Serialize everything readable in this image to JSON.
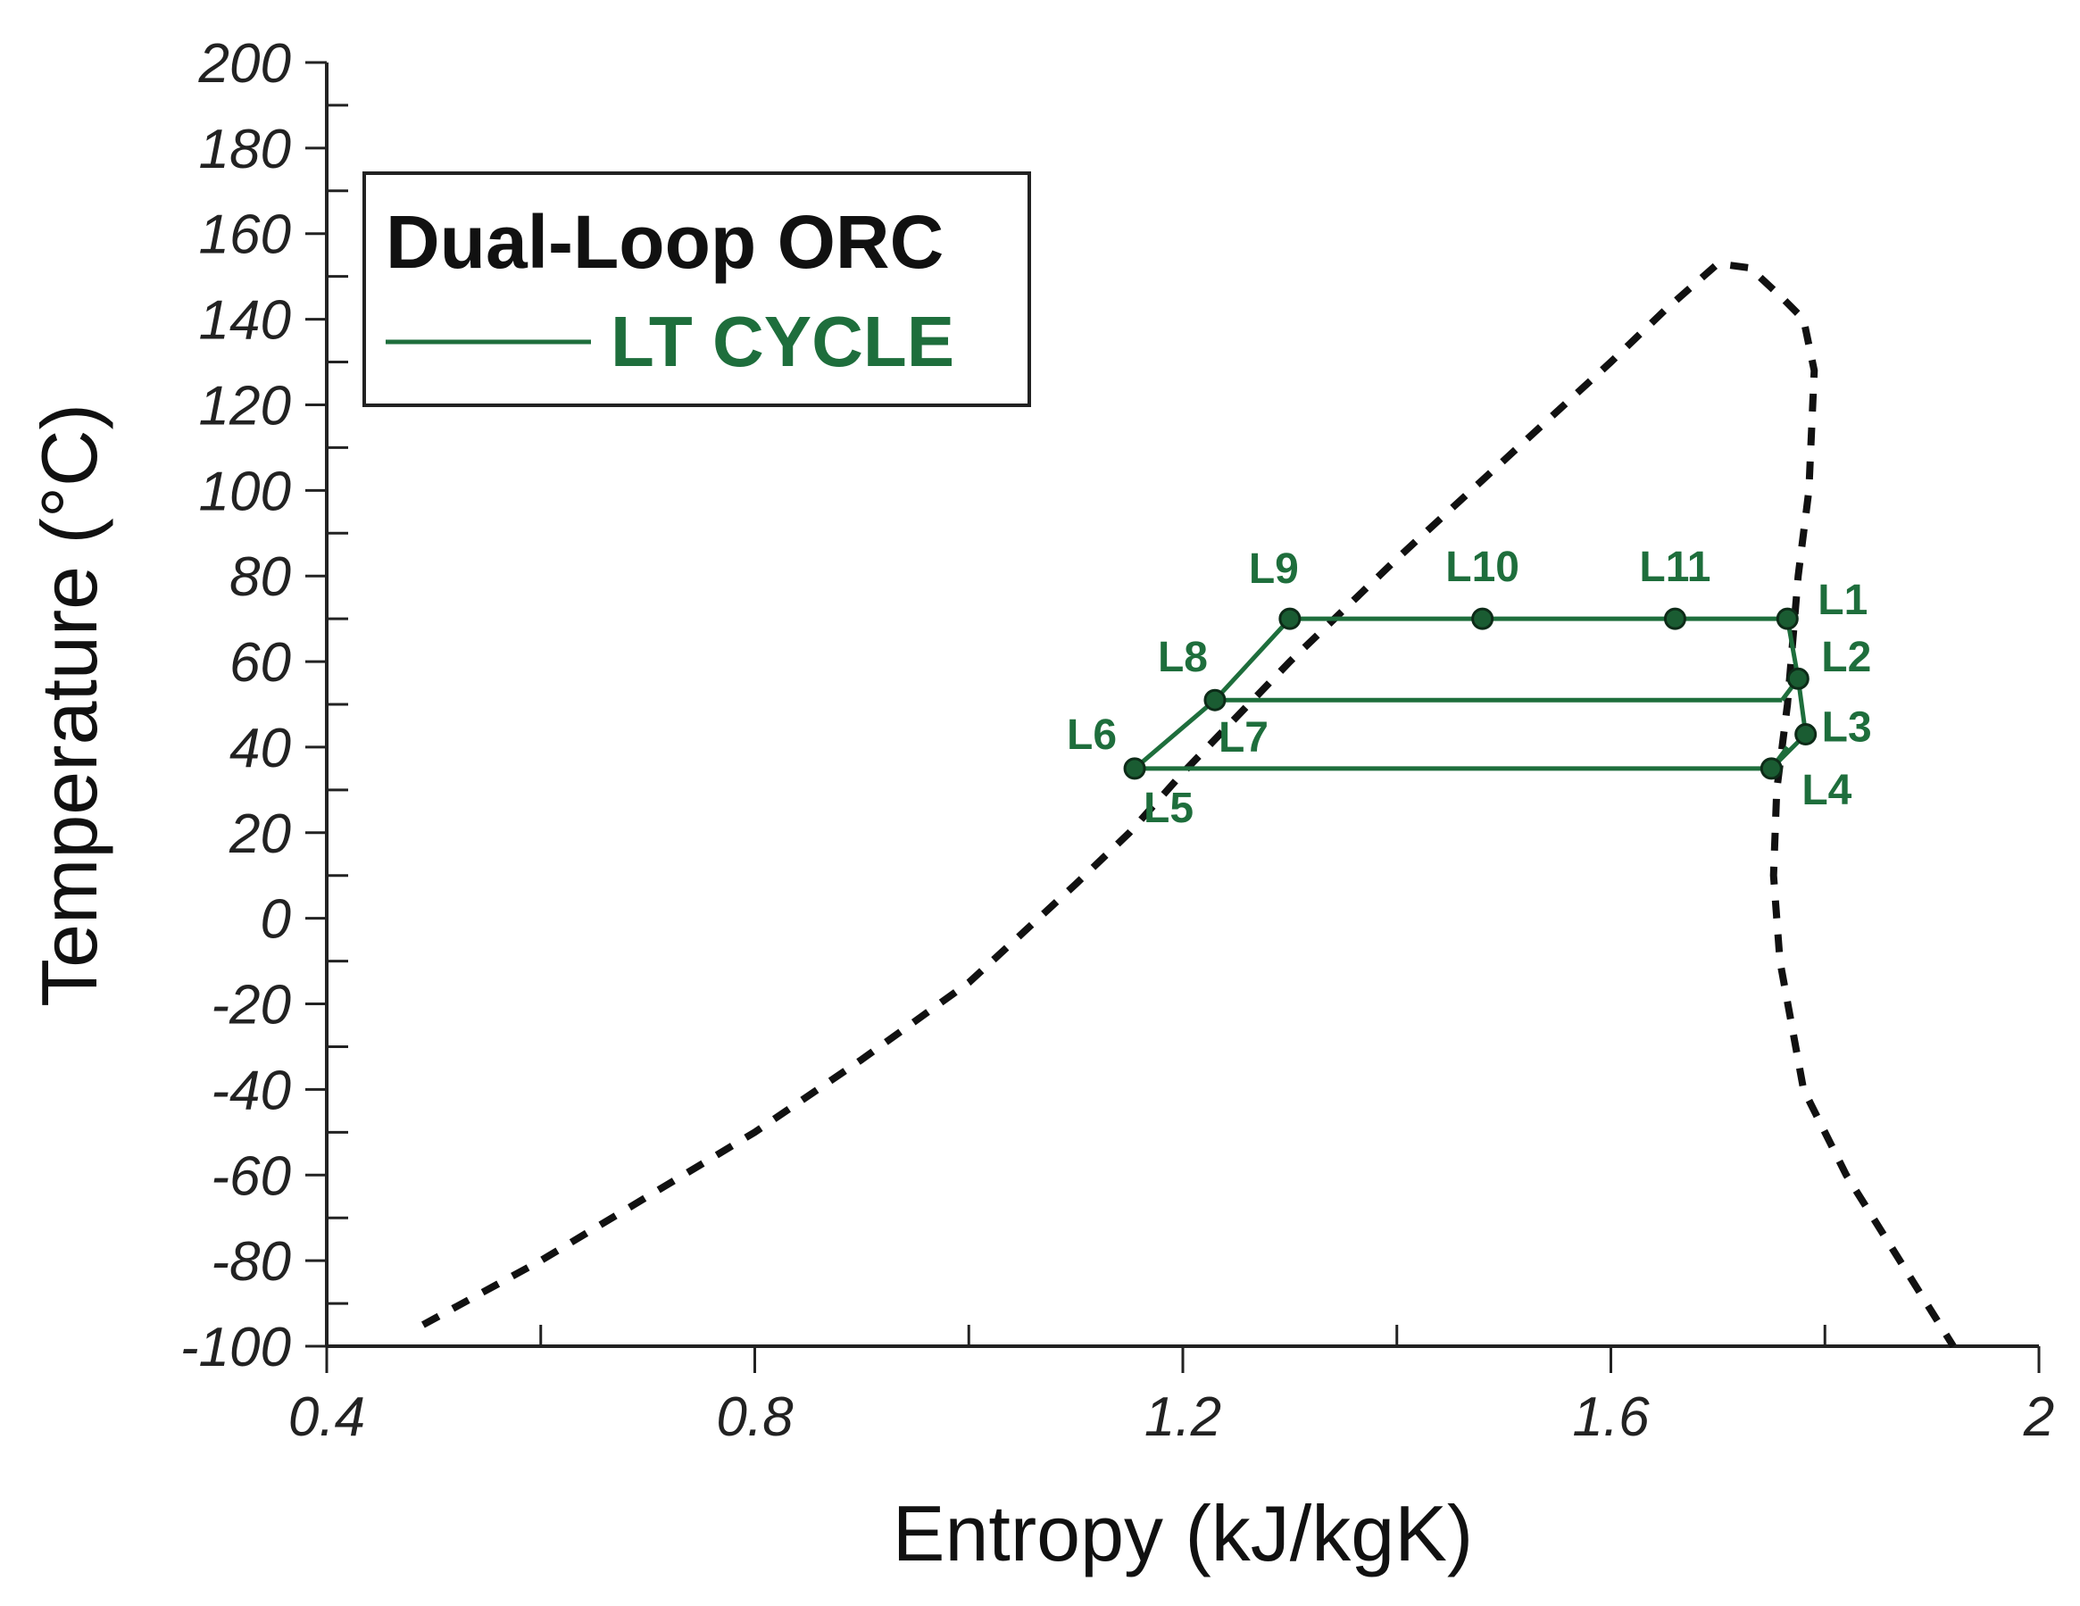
{
  "chart_data": {
    "type": "line",
    "title": "",
    "xlabel": "Entropy (kJ/kgK)",
    "ylabel": "Temperature (°C)",
    "xlim": [
      0.4,
      2.0
    ],
    "ylim": [
      -100,
      200
    ],
    "x_ticks": [
      0.4,
      0.8,
      1.2,
      1.6,
      2.0
    ],
    "x_tick_labels": [
      "0.4",
      "0.8",
      "1.2",
      "1.6",
      "2"
    ],
    "y_ticks": [
      -100,
      -80,
      -60,
      -40,
      -20,
      0,
      20,
      40,
      60,
      80,
      100,
      120,
      140,
      160,
      180,
      200
    ],
    "y_tick_labels": [
      "-100",
      "-80",
      "-60",
      "-40",
      "-20",
      "0",
      "20",
      "40",
      "60",
      "80",
      "100",
      "120",
      "140",
      "160",
      "180",
      "200"
    ],
    "grid": false,
    "legend": {
      "position": "top-left",
      "title": "Dual-Loop ORC",
      "entries": [
        {
          "name": "LT CYCLE",
          "color": "#1e6e3c"
        }
      ]
    },
    "colors": {
      "cycle": "#1e6e3c",
      "dome": "#111111",
      "marker_fill": "#1a5c32"
    },
    "saturation_dome": {
      "style": "dashed",
      "x": [
        0.49,
        0.6,
        0.7,
        0.8,
        0.9,
        1.0,
        1.1,
        1.15,
        1.2,
        1.3,
        1.4,
        1.5,
        1.6,
        1.65,
        1.7,
        1.73,
        1.76,
        1.78,
        1.79,
        1.785,
        1.775,
        1.765,
        1.755,
        1.752,
        1.758,
        1.78,
        1.82,
        1.87,
        1.92
      ],
      "y": [
        -95,
        -80,
        -65,
        -50,
        -33,
        -15,
        8,
        20,
        34,
        60,
        84,
        107,
        130,
        142,
        153,
        152,
        145,
        140,
        128,
        100,
        80,
        50,
        30,
        10,
        -10,
        -40,
        -60,
        -80,
        -100
      ]
    },
    "points": [
      {
        "name": "L1",
        "x": 1.765,
        "y": 70
      },
      {
        "name": "L2",
        "x": 1.775,
        "y": 56
      },
      {
        "name": "L3",
        "x": 1.782,
        "y": 43
      },
      {
        "name": "L4",
        "x": 1.75,
        "y": 35
      },
      {
        "name": "L5",
        "x": 1.155,
        "y": 35
      },
      {
        "name": "L6",
        "x": 1.15,
        "y": 35
      },
      {
        "name": "L7",
        "x": 1.23,
        "y": 51
      },
      {
        "name": "L8",
        "x": 1.225,
        "y": 51
      },
      {
        "name": "L9",
        "x": 1.3,
        "y": 70
      },
      {
        "name": "L10",
        "x": 1.48,
        "y": 70
      },
      {
        "name": "L11",
        "x": 1.66,
        "y": 70
      }
    ],
    "cycle_path": [
      {
        "x": 1.3,
        "y": 70
      },
      {
        "x": 1.48,
        "y": 70
      },
      {
        "x": 1.66,
        "y": 70
      },
      {
        "x": 1.765,
        "y": 70
      },
      {
        "x": 1.775,
        "y": 56
      },
      {
        "x": 1.782,
        "y": 43
      },
      {
        "x": 1.75,
        "y": 35
      },
      {
        "x": 1.155,
        "y": 35
      },
      {
        "x": 1.23,
        "y": 51
      },
      {
        "x": 1.3,
        "y": 70
      }
    ],
    "extra_segments": [
      {
        "x": [
          1.23,
          1.76
        ],
        "y": [
          51,
          51
        ]
      },
      {
        "x": [
          1.76,
          1.775
        ],
        "y": [
          51,
          56
        ]
      },
      {
        "x": [
          1.75,
          1.765
        ],
        "y": [
          35,
          40
        ]
      }
    ]
  }
}
